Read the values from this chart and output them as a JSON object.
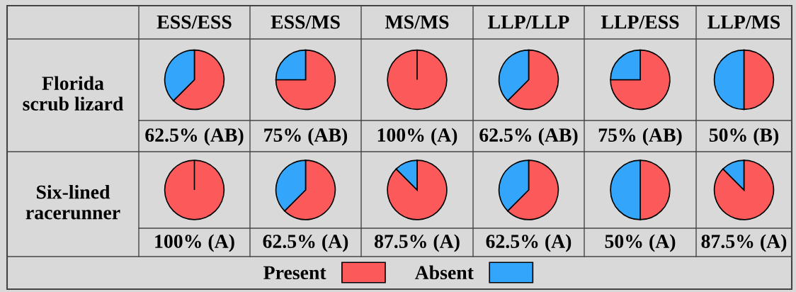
{
  "chart_data": [
    {
      "type": "other",
      "categories": [
        "ESS/ESS",
        "ESS/MS",
        "MS/MS",
        "LLP/LLP",
        "LLP/ESS",
        "LLP/MS"
      ],
      "y_categories": [
        "Florida\nscrub lizard",
        "Six-lined\nracerunner"
      ]
    },
    {
      "type": "pie",
      "categories": [
        "Present",
        "Absent"
      ],
      "values": [
        62.5,
        37.5
      ],
      "colors": [
        "#fc5a5a",
        "#33a6fb"
      ],
      "annotations": [
        "62.5% (AB)"
      ],
      "legend": "bottom"
    },
    {
      "type": "pie",
      "categories": [
        null,
        null
      ],
      "values": [
        75,
        25
      ],
      "colors": [
        "#fc5a5a",
        "#33a6fb"
      ],
      "annotations": [
        "75% (AB)"
      ]
    },
    {
      "type": "pie",
      "categories": [
        null,
        null
      ],
      "values": [
        100,
        0
      ],
      "colors": [
        "#fc5a5a",
        "#33a6fb"
      ],
      "annotations": [
        "100% (A)"
      ]
    },
    {
      "type": "pie",
      "categories": [
        null,
        null
      ],
      "values": [
        62.5,
        37.5
      ],
      "colors": [
        "#fc5a5a",
        "#33a6fb"
      ],
      "annotations": [
        "62.5% (AB)"
      ]
    },
    {
      "type": "pie",
      "categories": [
        null,
        null
      ],
      "values": [
        75,
        25
      ],
      "colors": [
        "#fc5a5a",
        "#33a6fb"
      ],
      "annotations": [
        "75% (AB)"
      ]
    },
    {
      "type": "pie",
      "categories": [
        null,
        null
      ],
      "values": [
        50,
        50
      ],
      "colors": [
        "#fc5a5a",
        "#33a6fb"
      ],
      "annotations": [
        "50% (B)"
      ]
    },
    {
      "type": "pie",
      "categories": [
        null,
        null
      ],
      "values": [
        100,
        0
      ],
      "colors": [
        "#fc5a5a",
        "#33a6fb"
      ],
      "annotations": [
        "100% (A)"
      ]
    },
    {
      "type": "pie",
      "categories": [
        null,
        null
      ],
      "values": [
        62.5,
        37.5
      ],
      "colors": [
        "#fc5a5a",
        "#33a6fb"
      ],
      "annotations": [
        "62.5% (A)"
      ]
    },
    {
      "type": "pie",
      "categories": [
        null,
        null
      ],
      "values": [
        87.5,
        12.5
      ],
      "colors": [
        "#fc5a5a",
        "#33a6fb"
      ],
      "annotations": [
        "87.5% (A)"
      ]
    },
    {
      "type": "pie",
      "categories": [
        null,
        null
      ],
      "values": [
        62.5,
        37.5
      ],
      "colors": [
        "#fc5a5a",
        "#33a6fb"
      ],
      "annotations": [
        "62.5% (A)"
      ]
    },
    {
      "type": "pie",
      "categories": [
        null,
        null
      ],
      "values": [
        50,
        50
      ],
      "colors": [
        "#fc5a5a",
        "#33a6fb"
      ],
      "annotations": [
        "50% (A)"
      ]
    },
    {
      "type": "pie",
      "categories": [
        null,
        null
      ],
      "values": [
        87.5,
        12.5
      ],
      "colors": [
        "#fc5a5a",
        "#33a6fb"
      ],
      "annotations": [
        "87.5% (A)"
      ]
    }
  ]
}
